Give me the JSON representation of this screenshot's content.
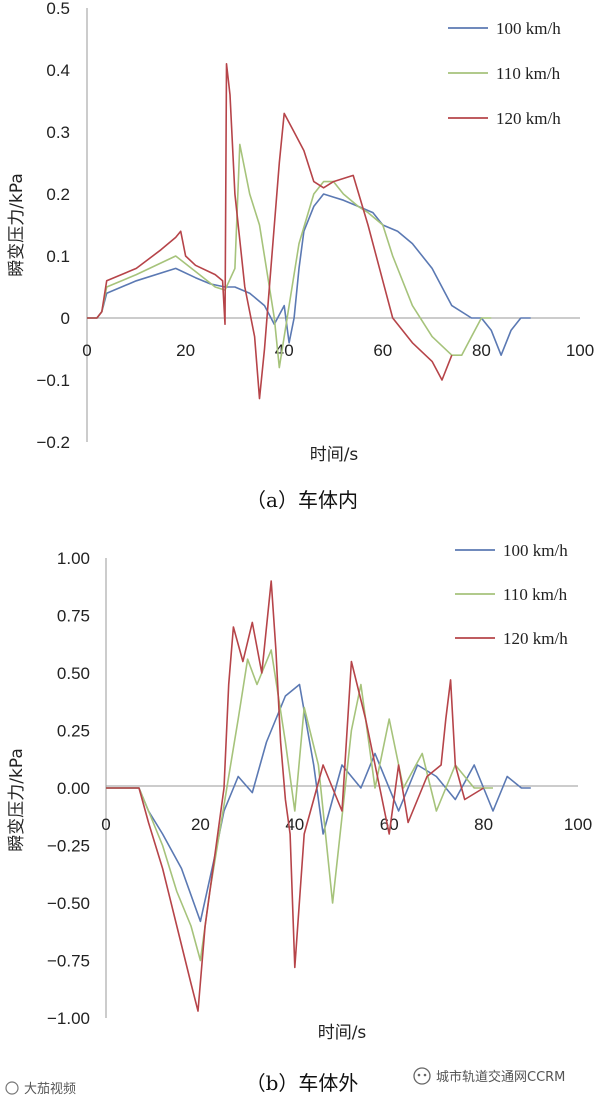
{
  "chart_data": [
    {
      "type": "line",
      "caption": "（a）车体内",
      "xlabel": "时间/s",
      "ylabel": "瞬变压力/kPa",
      "xlim": [
        0,
        100
      ],
      "ylim": [
        -0.2,
        0.5
      ],
      "xticks": [
        "0",
        "20",
        "40",
        "60",
        "80",
        "100"
      ],
      "yticks": [
        "−0.2",
        "−0.1",
        "0",
        "0.1",
        "0.2",
        "0.3",
        "0.4",
        "0.5"
      ],
      "legend_position": "top-right",
      "series": [
        {
          "name": "100 km/h",
          "color": "#5b79b3",
          "x": [
            0,
            2,
            3,
            4,
            10,
            18,
            22,
            25,
            28,
            30,
            33,
            36,
            38,
            40,
            41,
            42,
            43,
            44,
            46,
            48,
            50,
            52,
            55,
            58,
            60,
            63,
            66,
            70,
            74,
            78,
            80,
            82,
            84,
            86,
            88,
            90
          ],
          "y": [
            0,
            0,
            0.01,
            0.04,
            0.06,
            0.08,
            0.065,
            0.055,
            0.05,
            0.05,
            0.04,
            0.02,
            -0.01,
            0.02,
            -0.04,
            0.0,
            0.08,
            0.14,
            0.18,
            0.2,
            0.195,
            0.19,
            0.18,
            0.17,
            0.15,
            0.14,
            0.12,
            0.08,
            0.02,
            0.0,
            0.0,
            -0.02,
            -0.06,
            -0.02,
            0.0,
            0.0
          ]
        },
        {
          "name": "110 km/h",
          "color": "#a6c37b",
          "x": [
            0,
            2,
            3,
            4,
            10,
            18,
            22,
            26,
            28,
            30,
            31,
            33,
            35,
            37,
            38,
            39,
            41,
            43,
            46,
            48,
            50,
            52,
            55,
            57,
            60,
            62,
            66,
            70,
            74,
            76,
            78,
            80,
            82
          ],
          "y": [
            0,
            0,
            0.01,
            0.05,
            0.07,
            0.1,
            0.075,
            0.05,
            0.045,
            0.08,
            0.28,
            0.2,
            0.15,
            0.05,
            0.0,
            -0.08,
            0.02,
            0.12,
            0.2,
            0.22,
            0.22,
            0.2,
            0.18,
            0.17,
            0.15,
            0.1,
            0.02,
            -0.03,
            -0.06,
            -0.06,
            -0.03,
            0.0,
            0.0
          ]
        },
        {
          "name": "120 km/h",
          "color": "#b64449",
          "x": [
            0,
            2,
            3,
            4,
            10,
            15,
            18,
            19,
            20,
            22,
            26,
            27.5,
            28,
            28.3,
            29,
            30,
            32,
            34,
            35,
            36,
            37,
            39,
            40,
            42,
            44,
            46,
            48,
            50,
            54,
            57,
            60,
            62,
            66,
            70,
            72,
            74
          ],
          "y": [
            0,
            0,
            0.01,
            0.06,
            0.08,
            0.11,
            0.13,
            0.14,
            0.1,
            0.085,
            0.07,
            0.06,
            -0.01,
            0.41,
            0.36,
            0.2,
            0.05,
            -0.03,
            -0.13,
            -0.05,
            0.05,
            0.25,
            0.33,
            0.3,
            0.27,
            0.22,
            0.21,
            0.22,
            0.23,
            0.15,
            0.06,
            0.0,
            -0.04,
            -0.07,
            -0.1,
            -0.06
          ]
        }
      ]
    },
    {
      "type": "line",
      "caption": "（b）车体外",
      "xlabel": "时间/s",
      "ylabel": "瞬变压力/kPa",
      "xlim": [
        0,
        100
      ],
      "ylim": [
        -1.0,
        1.0
      ],
      "xticks": [
        "0",
        "20",
        "40",
        "60",
        "80",
        "100"
      ],
      "yticks": [
        "−1.00",
        "−0.75",
        "−0.50",
        "−0.25",
        "0.00",
        "0.25",
        "0.50",
        "0.75",
        "1.00"
      ],
      "legend_position": "top-right",
      "series": [
        {
          "name": "100 km/h",
          "color": "#5b79b3",
          "x": [
            0,
            7,
            9,
            12,
            16,
            20,
            23,
            25,
            28,
            31,
            34,
            38,
            41,
            44,
            46,
            50,
            54,
            57,
            62,
            66,
            70,
            74,
            78,
            82,
            85,
            88,
            90
          ],
          "y": [
            0,
            0,
            -0.1,
            -0.2,
            -0.35,
            -0.58,
            -0.3,
            -0.1,
            0.05,
            -0.02,
            0.2,
            0.4,
            0.45,
            0.1,
            -0.2,
            0.1,
            0.0,
            0.15,
            -0.1,
            0.1,
            0.05,
            -0.05,
            0.1,
            -0.1,
            0.05,
            0.0,
            0.0
          ]
        },
        {
          "name": "110 km/h",
          "color": "#a6c37b",
          "x": [
            0,
            7,
            9,
            12,
            15,
            18,
            20,
            22,
            24,
            26,
            28,
            30,
            32,
            35,
            38,
            40,
            42,
            45,
            48,
            52,
            54,
            57,
            60,
            63,
            67,
            70,
            74,
            78,
            82
          ],
          "y": [
            0,
            0,
            -0.1,
            -0.25,
            -0.45,
            -0.6,
            -0.75,
            -0.45,
            -0.2,
            0.05,
            0.3,
            0.56,
            0.45,
            0.6,
            0.2,
            -0.1,
            0.35,
            0.1,
            -0.5,
            0.25,
            0.45,
            0.0,
            0.3,
            0.0,
            0.15,
            -0.1,
            0.1,
            0.0,
            0.0
          ]
        },
        {
          "name": "120 km/h",
          "color": "#b64449",
          "x": [
            0,
            7,
            9,
            12,
            15,
            18,
            19.5,
            21,
            23,
            25,
            26,
            27,
            29,
            31,
            33,
            35,
            36,
            37,
            38,
            39,
            40,
            42,
            44,
            46,
            50,
            52,
            55,
            58,
            60,
            62,
            64,
            68,
            71,
            72,
            73,
            74,
            76,
            80
          ],
          "y": [
            0,
            0,
            -0.15,
            -0.35,
            -0.6,
            -0.85,
            -0.97,
            -0.6,
            -0.3,
            0.0,
            0.45,
            0.7,
            0.55,
            0.72,
            0.5,
            0.9,
            0.6,
            0.2,
            -0.05,
            -0.2,
            -0.78,
            -0.2,
            -0.05,
            0.1,
            -0.1,
            0.55,
            0.3,
            0.0,
            -0.2,
            0.1,
            -0.15,
            0.05,
            0.1,
            0.3,
            0.47,
            0.1,
            -0.05,
            0.0
          ]
        }
      ]
    }
  ],
  "watermark_left": "大茄视频",
  "watermark_right": "城市轨道交通网CCRM"
}
